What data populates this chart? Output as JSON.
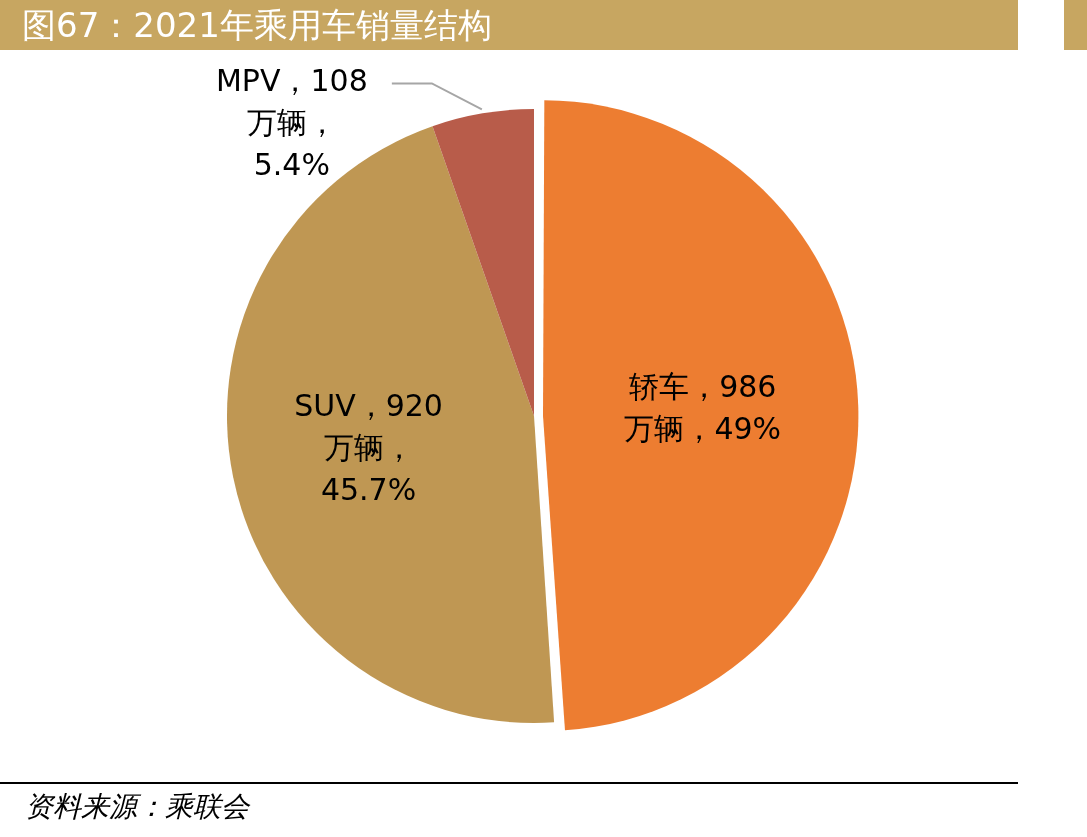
{
  "chart_data": {
    "type": "pie",
    "title": "图67：2021年乘用车销量结构",
    "categories": [
      "轿车",
      "SUV",
      "MPV"
    ],
    "values": [
      986,
      920,
      108
    ],
    "colors": [
      "#ed7d31",
      "#bf9753",
      "#b85c4a"
    ],
    "value_labels": [
      "，986\n万辆，49%",
      "，920\n万辆，\n45.7%",
      "，108\n万辆，\n5.4%"
    ],
    "legend": false,
    "annotations": [
      "资料来源：乘联会"
    ]
  }
}
